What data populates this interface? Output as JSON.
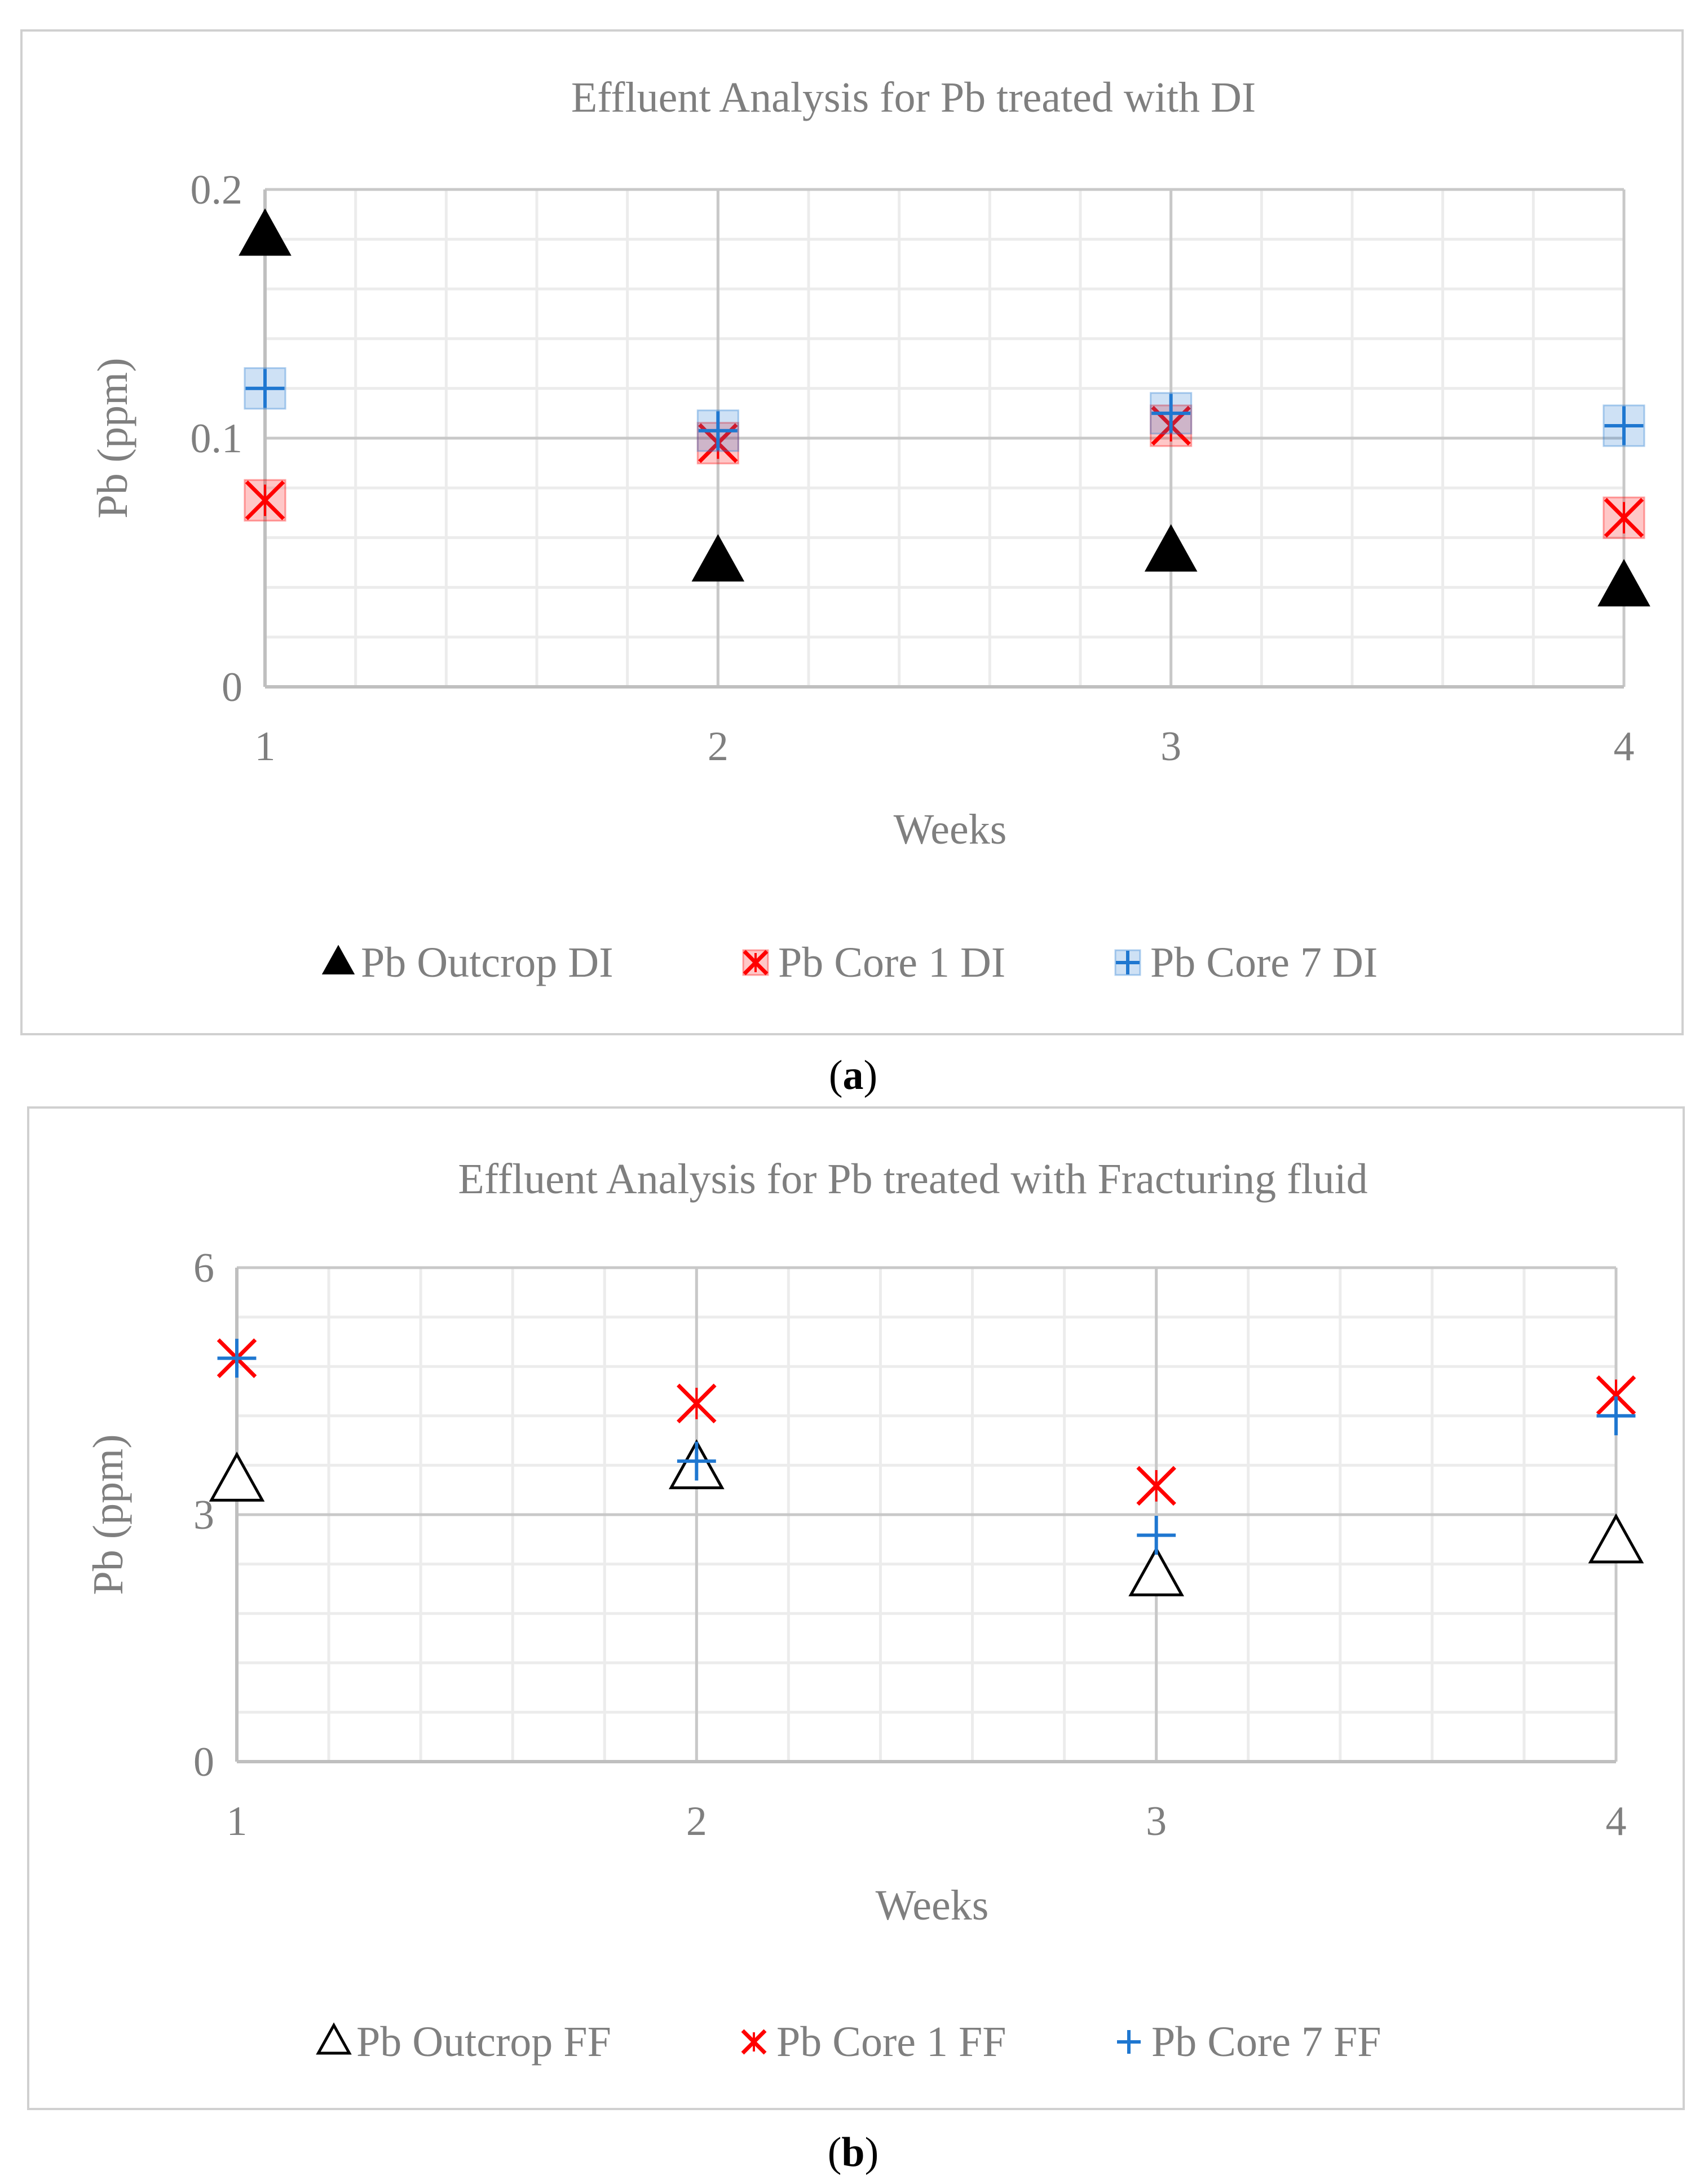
{
  "panel_labels": {
    "a": "a",
    "b": "b"
  },
  "chart_data": [
    {
      "type": "scatter",
      "title": "Effluent Analysis for Pb treated with DI",
      "xlabel": "Weeks",
      "ylabel": "Pb (ppm)",
      "x": [
        1,
        2,
        3,
        4
      ],
      "xticks": [
        "1",
        "2",
        "3",
        "4"
      ],
      "yticks": [
        "0",
        "0.1",
        "0.2"
      ],
      "xlim": [
        1,
        4
      ],
      "ylim": [
        0,
        0.2
      ],
      "grid": true,
      "legend_position": "bottom",
      "series": [
        {
          "name": "Pb Outcrop DI",
          "marker": "triangle-filled",
          "color": "#000000",
          "values": [
            0.181,
            0.05,
            0.054,
            0.04
          ]
        },
        {
          "name": "Pb Core 1 DI",
          "marker": "x-star-boxed",
          "color": "#ff0000",
          "values": [
            0.075,
            0.098,
            0.105,
            0.068
          ]
        },
        {
          "name": "Pb Core 7 DI",
          "marker": "plus-boxed",
          "color": "#1f77d0",
          "values": [
            0.12,
            0.103,
            0.11,
            0.105
          ]
        }
      ]
    },
    {
      "type": "scatter",
      "title": "Effluent Analysis for Pb treated with Fracturing fluid",
      "xlabel": "Weeks",
      "ylabel": "Pb (ppm)",
      "x": [
        1,
        2,
        3,
        4
      ],
      "xticks": [
        "1",
        "2",
        "3",
        "4"
      ],
      "yticks": [
        "0",
        "3",
        "6"
      ],
      "xlim": [
        1,
        4
      ],
      "ylim": [
        0,
        6
      ],
      "grid": true,
      "legend_position": "bottom",
      "series": [
        {
          "name": "Pb Outcrop FF",
          "marker": "triangle-open",
          "color": "#000000",
          "values": [
            3.4,
            3.55,
            2.25,
            2.65
          ]
        },
        {
          "name": "Pb Core 1 FF",
          "marker": "x-star",
          "color": "#ff0000",
          "values": [
            4.9,
            4.35,
            3.35,
            4.45
          ]
        },
        {
          "name": "Pb Core 7 FF",
          "marker": "plus",
          "color": "#1f77d0",
          "values": [
            4.9,
            3.65,
            2.75,
            4.2
          ]
        }
      ]
    }
  ]
}
